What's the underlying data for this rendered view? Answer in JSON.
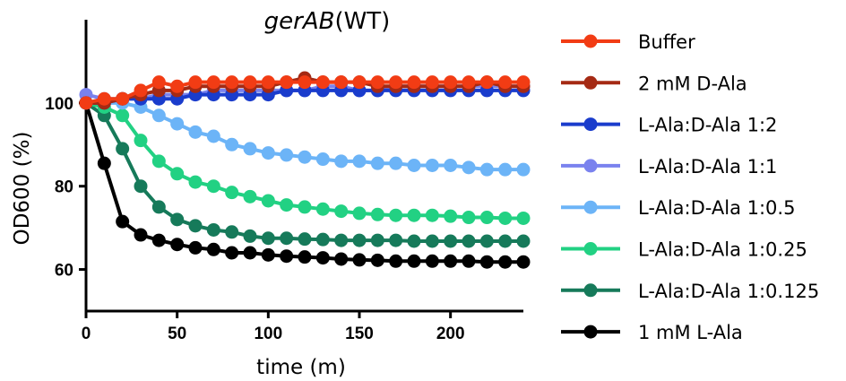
{
  "chart_data": {
    "type": "line",
    "title_prefix": "gerAB",
    "title_suffix": "(WT)",
    "xlabel": "time (m)",
    "ylabel": "OD600 (%)",
    "xlim": [
      0,
      240
    ],
    "ylim": [
      50,
      120
    ],
    "xticks": [
      0,
      50,
      100,
      150,
      200
    ],
    "yticks": [
      60,
      80,
      100
    ],
    "grid": false,
    "legend_position": "right",
    "x": [
      0,
      10,
      20,
      30,
      40,
      50,
      60,
      70,
      80,
      90,
      100,
      110,
      120,
      130,
      140,
      150,
      160,
      170,
      180,
      190,
      200,
      210,
      220,
      230,
      240
    ],
    "series": [
      {
        "name": "Buffer",
        "color": "#f23c14",
        "values": [
          100,
          101,
          101,
          103,
          105,
          104,
          105,
          105,
          105,
          105,
          105,
          105,
          105,
          105,
          105,
          105,
          105,
          105,
          105,
          105,
          105,
          105,
          105,
          105,
          105
        ]
      },
      {
        "name": "2 mM D-Ala",
        "color": "#a52a14",
        "values": [
          100,
          100,
          101,
          102,
          103,
          103,
          104,
          104,
          104,
          104,
          104,
          105,
          106,
          105,
          105,
          105,
          104,
          104,
          104,
          104,
          104,
          104,
          105,
          104,
          104
        ]
      },
      {
        "name": "L-Ala:D-Ala 1:2",
        "color": "#1a3ccc",
        "values": [
          100,
          100,
          101,
          101,
          101,
          101,
          102,
          102,
          102,
          102,
          102,
          103,
          103,
          103,
          103,
          103,
          103,
          103,
          103,
          103,
          103,
          103,
          103,
          103,
          103
        ]
      },
      {
        "name": "L-Ala:D-Ala 1:1",
        "color": "#7a82ee",
        "values": [
          102,
          101,
          101,
          101,
          102,
          102,
          102,
          103,
          103,
          103,
          103,
          103,
          103,
          104,
          104,
          103,
          103,
          104,
          104,
          104,
          104,
          104,
          104,
          104,
          104
        ]
      },
      {
        "name": "L-Ala:D-Ala 1:0.5",
        "color": "#6cb4f7",
        "values": [
          100,
          100,
          100,
          99,
          97,
          95,
          93,
          92,
          90,
          89,
          88,
          87.5,
          87,
          86.5,
          86,
          86,
          85.5,
          85.5,
          85,
          85,
          85,
          84.5,
          84,
          84,
          84
        ]
      },
      {
        "name": "L-Ala:D-Ala 1:0.25",
        "color": "#22d183",
        "values": [
          100,
          99,
          97,
          91,
          86,
          83,
          81,
          80,
          78.5,
          77.5,
          76.5,
          75.5,
          75,
          74.5,
          74,
          73.5,
          73.2,
          73,
          73,
          73,
          72.8,
          72.5,
          72.5,
          72.3,
          72.3
        ]
      },
      {
        "name": "L-Ala:D-Ala 1:0.125",
        "color": "#167a5a",
        "values": [
          100,
          97,
          89,
          80,
          75,
          72,
          70.5,
          69.5,
          69,
          68,
          67.5,
          67.5,
          67.3,
          67.2,
          67,
          67,
          67,
          67,
          66.8,
          66.8,
          66.8,
          66.8,
          66.8,
          66.8,
          66.8
        ]
      },
      {
        "name": "1 mM L-Ala",
        "color": "#000000",
        "values": [
          100,
          85.5,
          71.5,
          68.3,
          67,
          66,
          65.2,
          64.8,
          64,
          64,
          63.5,
          63.2,
          63,
          62.8,
          62.5,
          62.3,
          62.2,
          62,
          62,
          62,
          62,
          62,
          61.8,
          61.8,
          61.8
        ]
      }
    ]
  }
}
